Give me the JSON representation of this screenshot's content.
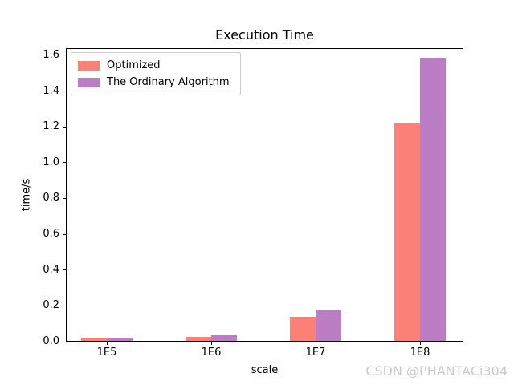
{
  "figure": {
    "background": "#ffffff"
  },
  "chart_data": {
    "type": "bar",
    "title": "Execution Time",
    "xlabel": "scale",
    "ylabel": "time/s",
    "categories": [
      "1E5",
      "1E6",
      "1E7",
      "1E8"
    ],
    "series": [
      {
        "name": "Optimized",
        "color": "#fb8076",
        "values": [
          0.013,
          0.022,
          0.135,
          1.22
        ]
      },
      {
        "name": "The Ordinary Algorithm",
        "color": "#bb7ec4",
        "values": [
          0.015,
          0.03,
          0.17,
          1.58
        ]
      }
    ],
    "ylim": [
      0,
      1.64
    ],
    "yticks": [
      "0.0",
      "0.2",
      "0.4",
      "0.6",
      "0.8",
      "1.0",
      "1.2",
      "1.4",
      "1.6"
    ],
    "grid": false,
    "legend_position": "upper-left",
    "axis_color": "#000000",
    "text_color": "#000000",
    "watermark": {
      "text": "CSDN @PHANTACi304",
      "color": "#cbcbcb"
    }
  }
}
